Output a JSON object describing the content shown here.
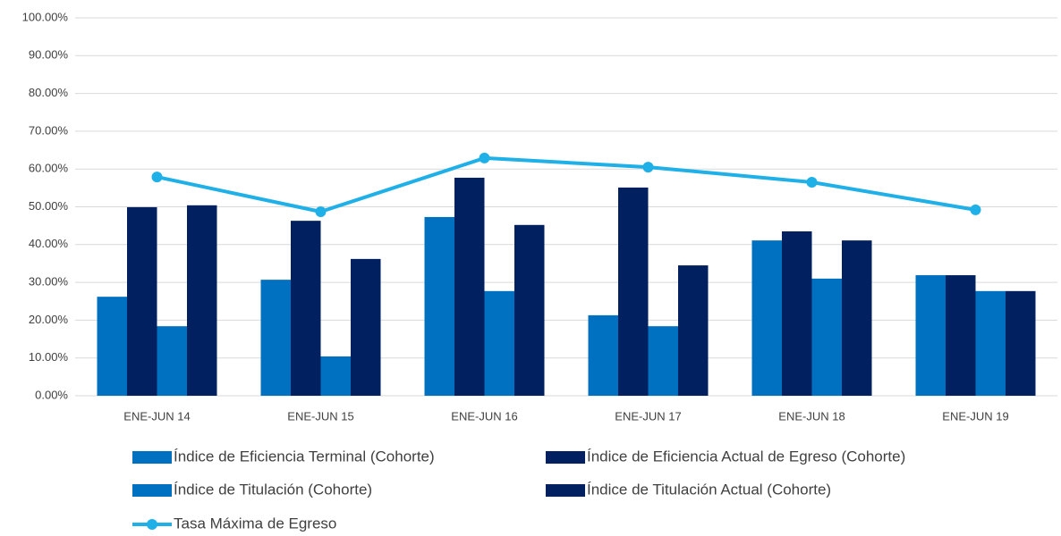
{
  "chart_data": {
    "type": "bar",
    "categories": [
      "ENE-JUN 14",
      "ENE-JUN 15",
      "ENE-JUN 16",
      "ENE-JUN 17",
      "ENE-JUN 18",
      "ENE-JUN 19"
    ],
    "series": [
      {
        "name": "Índice de Eficiencia Terminal (Cohorte)",
        "color": "#0070c0",
        "values": [
          26.2,
          30.7,
          47.3,
          21.3,
          41.1,
          31.9
        ]
      },
      {
        "name": "Índice de Eficiencia Actual de Egreso (Cohorte)",
        "color": "#002060",
        "values": [
          49.9,
          46.3,
          57.7,
          55.1,
          43.5,
          31.9
        ]
      },
      {
        "name": "Índice de Titulación (Cohorte)",
        "color": "#0070c0",
        "values": [
          18.4,
          10.4,
          27.7,
          18.4,
          31.0,
          27.7
        ]
      },
      {
        "name": "Índice de Titulación Actual (Cohorte)",
        "color": "#002060",
        "values": [
          50.4,
          36.2,
          45.2,
          34.5,
          41.1,
          27.7
        ]
      },
      {
        "name": "Tasa Máxima de Egreso",
        "color": "#1fb0e8",
        "type": "line",
        "values": [
          57.9,
          48.7,
          62.9,
          60.5,
          56.5,
          49.2
        ]
      }
    ],
    "ylim": [
      0,
      100
    ],
    "yticks": [
      {
        "value": 0,
        "label": "0.00%"
      },
      {
        "value": 10,
        "label": "10.00%"
      },
      {
        "value": 20,
        "label": "20.00%"
      },
      {
        "value": 30,
        "label": "30.00%"
      },
      {
        "value": 40,
        "label": "40.00%"
      },
      {
        "value": 50,
        "label": "50.00%"
      },
      {
        "value": 60,
        "label": "60.00%"
      },
      {
        "value": 70,
        "label": "70.00%"
      },
      {
        "value": 80,
        "label": "80.00%"
      },
      {
        "value": 90,
        "label": "90.00%"
      },
      {
        "value": 100,
        "label": "100.00%"
      }
    ],
    "grid": true
  }
}
